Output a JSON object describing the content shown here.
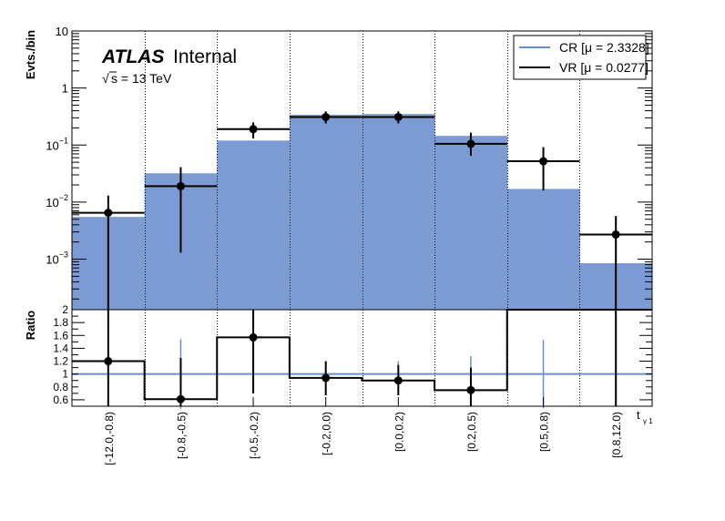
{
  "chart_data": {
    "type": "bar",
    "categories": [
      "[-12.0,-0.8)",
      "[-0.8,-0.5)",
      "[-0.5,-0.2)",
      "[-0.2,0.0)",
      "[0.0,0.2)",
      "[0.2,0.5)",
      "[0.5,0.8)",
      "[0.8,12.0)"
    ],
    "xlabel": "t",
    "xlabel_sub": "γ 1",
    "ylabel": "Evts./bin",
    "ratio_ylabel": "Ratio",
    "yscale": "log",
    "ylim": [
      0.00013,
      10
    ],
    "ratio_ylim": [
      0.5,
      2.0
    ],
    "yticks": [
      {
        "value": 10,
        "base": "10",
        "exp": ""
      },
      {
        "value": 1,
        "base": "1",
        "exp": ""
      },
      {
        "value": 0.1,
        "base": "10",
        "exp": "−1"
      },
      {
        "value": 0.01,
        "base": "10",
        "exp": "−2"
      },
      {
        "value": 0.001,
        "base": "10",
        "exp": "−3"
      }
    ],
    "ratio_yticks": [
      "0.6",
      "0.8",
      "1",
      "1.2",
      "1.4",
      "1.6",
      "1.8",
      "2"
    ],
    "grid": "vertical dotted at bin edges",
    "legend_position": "top-right",
    "atlas_label": "ATLAS",
    "atlas_status": "Internal",
    "energy_label": "s = 13 TeV",
    "energy_sqrt": "√",
    "series": [
      {
        "name": "CR [μ = 2.3328]",
        "style": "filled histogram",
        "color": "#7b9bd2",
        "legend_color": "#6a8fd0",
        "values": [
          0.0055,
          0.032,
          0.12,
          0.34,
          0.35,
          0.145,
          0.017,
          0.00085
        ]
      },
      {
        "name": "VR [μ = 0.0277]",
        "style": "points with error bars",
        "color": "#000000",
        "values": [
          0.0065,
          0.019,
          0.19,
          0.31,
          0.31,
          0.105,
          0.052,
          0.0027
        ],
        "err_low": [
          0.0065,
          0.0177,
          0.06,
          0.07,
          0.07,
          0.04,
          0.036,
          0.0027
        ],
        "err_high": [
          0.013,
          0.041,
          0.25,
          0.39,
          0.39,
          0.165,
          0.092,
          0.0057
        ]
      }
    ],
    "ratio": {
      "values": [
        1.2,
        0.61,
        1.57,
        0.94,
        0.9,
        0.75,
        2.0,
        2.0
      ],
      "err_low": [
        0.5,
        0.5,
        0.7,
        0.67,
        0.67,
        0.5,
        2.0,
        0.5
      ],
      "err_high": [
        2.0,
        1.25,
        2.0,
        1.2,
        1.14,
        1.1,
        2.0,
        2.0
      ],
      "show_marker": [
        true,
        true,
        true,
        true,
        true,
        true,
        false,
        false
      ],
      "ref_errors": [
        0,
        1.54,
        0.7,
        0,
        1.2,
        1.28,
        1.53,
        0
      ]
    }
  }
}
